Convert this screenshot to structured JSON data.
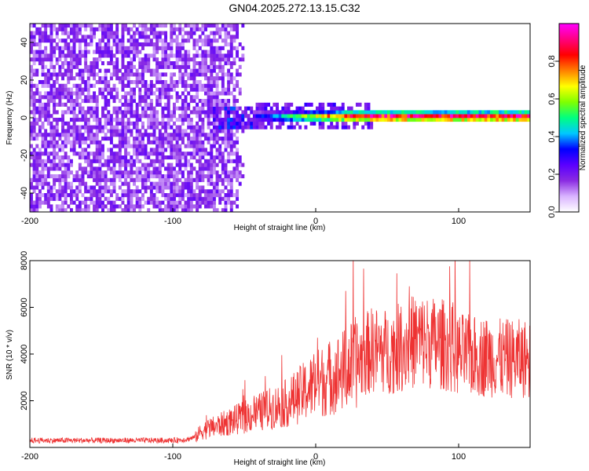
{
  "title": "GN04.2025.272.13.15.C32",
  "chart_data": [
    {
      "type": "heatmap",
      "xlabel": "Height of straight line (km)",
      "ylabel": "Frequency (Hz)",
      "xlim": [
        -200,
        150
      ],
      "ylim": [
        -50,
        50
      ],
      "x_ticks": [
        -200,
        -100,
        0,
        100
      ],
      "x_tick_labels": [
        "-200",
        "-100",
        "0",
        "100"
      ],
      "y_ticks": [
        -40,
        -20,
        0,
        20,
        40
      ],
      "y_tick_labels": [
        "-40",
        "-20",
        "0",
        "20",
        "40"
      ],
      "colorbar": {
        "label": "Normalized spectral amplitude",
        "range": [
          0,
          1
        ],
        "ticks": [
          0.0,
          0.2,
          0.4,
          0.6,
          0.8
        ],
        "tick_labels": [
          "0.0",
          "0.2",
          "0.4",
          "0.6",
          "0.8"
        ],
        "colors": [
          "#ffffff",
          "#d9b3ff",
          "#8a2be2",
          "#5a00ff",
          "#0000ff",
          "#00c8ff",
          "#00ff80",
          "#80ff00",
          "#ffff00",
          "#ff8000",
          "#ff0000",
          "#ff0080",
          "#ff00ff"
        ]
      },
      "regions": [
        {
          "description": "broadband noise",
          "x_range": [
            -200,
            -50
          ],
          "freq_range": [
            -50,
            50
          ],
          "amplitude": 0.2
        },
        {
          "description": "signal onset",
          "x_range": [
            -72,
            -45
          ],
          "freq_range": [
            -6,
            6
          ],
          "amplitude": 0.25
        },
        {
          "description": "signal band",
          "x_range": [
            -45,
            150
          ],
          "freq_center": 0.5,
          "freq_halfwidth": 3,
          "amplitude_peak": 1.0
        }
      ]
    },
    {
      "type": "line",
      "xlabel": "Height of straight line (km)",
      "ylabel": "SNR (10 * v/v)",
      "xlim": [
        -200,
        150
      ],
      "ylim": [
        0,
        8000
      ],
      "x_ticks": [
        -200,
        -100,
        0,
        100
      ],
      "x_tick_labels": [
        "-200",
        "-100",
        "0",
        "100"
      ],
      "y_ticks": [
        2000,
        4000,
        6000,
        8000
      ],
      "y_tick_labels": [
        "2000",
        "4000",
        "6000",
        "8000"
      ],
      "series": [
        {
          "color": "#ee3333",
          "x": [
            -200,
            -180,
            -160,
            -140,
            -120,
            -100,
            -90,
            -84,
            -80,
            -70,
            -60,
            -50,
            -40,
            -30,
            -20,
            -10,
            0,
            10,
            20,
            30,
            35,
            40,
            50,
            60,
            70,
            80,
            90,
            100,
            110,
            120,
            130,
            140,
            150
          ],
          "y": [
            300,
            300,
            300,
            300,
            300,
            300,
            350,
            450,
            700,
            900,
            1100,
            1300,
            1500,
            1700,
            1900,
            2300,
            2700,
            3000,
            3300,
            3700,
            4000,
            4200,
            4100,
            4300,
            4600,
            4500,
            4400,
            4000,
            3900,
            3900,
            3800,
            3800,
            3800
          ]
        }
      ]
    }
  ]
}
